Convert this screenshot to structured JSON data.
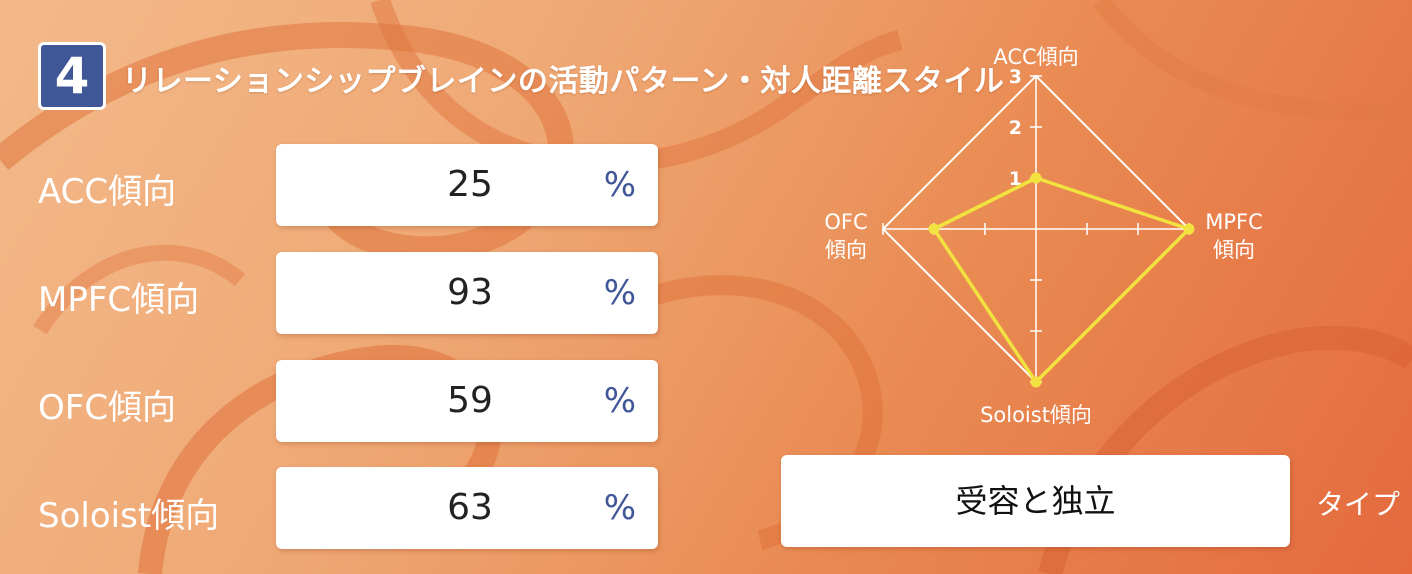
{
  "section": {
    "number": "4",
    "title": "リレーションシップブレインの活動パターン・対人距離スタイル"
  },
  "metrics": [
    {
      "label": "ACC傾向",
      "value": "25",
      "unit": "%"
    },
    {
      "label": "MPFC傾向",
      "value": "93",
      "unit": "%"
    },
    {
      "label": "OFC傾向",
      "value": "59",
      "unit": "%"
    },
    {
      "label": "Soloist傾向",
      "value": "63",
      "unit": "%"
    }
  ],
  "chart_data": {
    "type": "radar",
    "axes": [
      {
        "label_lines": [
          "ACC傾向"
        ],
        "value": 1
      },
      {
        "label_lines": [
          "MPFC",
          "傾向"
        ],
        "value": 3
      },
      {
        "label_lines": [
          "Soloist傾向"
        ],
        "value": 3
      },
      {
        "label_lines": [
          "OFC",
          "傾向"
        ],
        "value": 2
      }
    ],
    "range": [
      0,
      3
    ],
    "tick_labels": [
      "1",
      "2",
      "3"
    ],
    "series_color": "#f1e240"
  },
  "type_result": {
    "value": "受容と独立",
    "suffix": "タイプ"
  },
  "colors": {
    "accent": "#3f5796",
    "background": "#ef9e68"
  }
}
